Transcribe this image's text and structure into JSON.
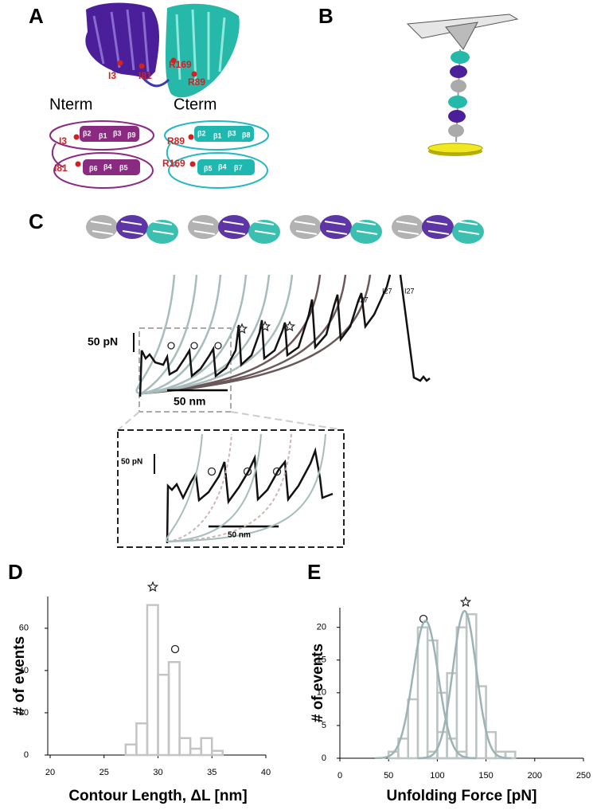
{
  "panel_a": {
    "label": "A",
    "residues": [
      "I3",
      "I81",
      "R169",
      "R89"
    ],
    "nterm": "Nterm",
    "cterm": "Cterm",
    "nterm_strands": [
      "β2",
      "β1",
      "β3",
      "β9",
      "β5",
      "β4",
      "β6"
    ],
    "nterm_sites": [
      "I3",
      "I81"
    ],
    "cterm_strands": [
      "β2",
      "β1",
      "β3",
      "β8",
      "β7",
      "β4",
      "β5"
    ],
    "cterm_sites": [
      "R89",
      "R169"
    ]
  },
  "panel_b": {
    "label": "B"
  },
  "panel_c": {
    "label": "C",
    "force_scale": "50 pN",
    "length_scale": "50 nm",
    "peaks": [
      "I27",
      "I27",
      "I27"
    ],
    "inset_force_scale": "50 pN",
    "inset_length_scale": "50 nm"
  },
  "chart_data": [
    {
      "type": "histogram",
      "label": "D",
      "ylabel": "# of events",
      "xlabel": "Contour Length, ΔL  [nm]",
      "xlim": [
        20,
        40
      ],
      "xticks": [
        20,
        25,
        30,
        35,
        40
      ],
      "ylim": [
        0,
        75
      ],
      "yticks": [
        0,
        20,
        40,
        60
      ],
      "series": [
        {
          "color": "#c4c4c4",
          "bins": [
            27,
            28,
            29,
            30,
            31,
            32,
            33,
            34,
            35,
            36
          ],
          "values": [
            5,
            15,
            71,
            38,
            44,
            8,
            3,
            8,
            2
          ]
        }
      ]
    },
    {
      "type": "histogram",
      "label": "E",
      "ylabel": "# of events",
      "xlabel": "Unfolding Force [pN]",
      "xlim": [
        0,
        250
      ],
      "xticks": [
        0,
        50,
        100,
        150,
        200,
        250
      ],
      "ylim": [
        0,
        23
      ],
      "yticks": [
        0,
        5,
        10,
        15,
        20
      ],
      "series": [
        {
          "color": "#bcc4c4",
          "bins": [
            50,
            60,
            70,
            80,
            90,
            100,
            110,
            120,
            130
          ],
          "values": [
            1,
            3,
            9,
            20,
            18,
            10,
            3,
            1
          ]
        },
        {
          "color": "#bcc4c4",
          "bins": [
            90,
            100,
            110,
            120,
            130,
            140,
            150,
            160,
            170,
            180
          ],
          "values": [
            1,
            4,
            13,
            20,
            22,
            11,
            4,
            1,
            1
          ]
        }
      ],
      "fits": [
        {
          "color": "#9db3b3",
          "mean": 88,
          "sd": 13,
          "peak": 21
        },
        {
          "color": "#9db3b3",
          "mean": 128,
          "sd": 12,
          "peak": 22.5
        }
      ]
    }
  ]
}
